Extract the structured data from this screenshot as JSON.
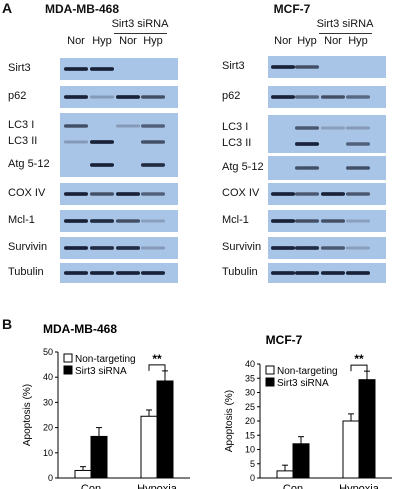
{
  "panel_a": {
    "letter": "A",
    "blots": [
      {
        "cell_line": "MDA-MB-468",
        "sirna_label": "Sirt3 siRNA",
        "lanes": [
          "Nor",
          "Hyp",
          "Nor",
          "Hyp"
        ],
        "rows": [
          {
            "label": "Sirt3",
            "bands": [
              1,
              1,
              0,
              0
            ]
          },
          {
            "label": "p62",
            "bands": [
              1,
              0.4,
              1,
              0.8
            ]
          },
          {
            "label": "LC3 I",
            "bands": [
              0.8,
              0,
              0.4,
              0.6
            ]
          },
          {
            "label": "LC3 II",
            "bands": [
              0.4,
              1,
              0,
              0.8
            ]
          },
          {
            "label": "Atg 5-12",
            "bands": [
              0,
              1,
              0,
              0.9
            ]
          },
          {
            "label": "COX IV",
            "bands": [
              1,
              0.8,
              1,
              0.6
            ]
          },
          {
            "label": "Mcl-1",
            "bands": [
              1,
              0.9,
              0.8,
              0.3
            ]
          },
          {
            "label": "Survivin",
            "bands": [
              1,
              0.9,
              0.9,
              0.4
            ]
          },
          {
            "label": "Tubulin",
            "bands": [
              1,
              1,
              1,
              1
            ]
          }
        ]
      },
      {
        "cell_line": "MCF-7",
        "sirna_label": "Sirt3 siRNA",
        "lanes": [
          "Nor",
          "Hyp",
          "Nor",
          "Hyp"
        ],
        "rows": [
          {
            "label": "Sirt3",
            "bands": [
              1,
              0.8,
              0,
              0
            ]
          },
          {
            "label": "p62",
            "bands": [
              1,
              0.5,
              0.8,
              0.5
            ]
          },
          {
            "label": "LC3 I",
            "bands": [
              0,
              0.7,
              0.3,
              0.4
            ]
          },
          {
            "label": "LC3 II",
            "bands": [
              0,
              1,
              0,
              0.6
            ]
          },
          {
            "label": "Atg 5-12",
            "bands": [
              0,
              0.8,
              0,
              0.8
            ]
          },
          {
            "label": "COX IV",
            "bands": [
              1,
              0.7,
              1,
              0.7
            ]
          },
          {
            "label": "Mcl-1",
            "bands": [
              1,
              0.8,
              0.8,
              0.3
            ]
          },
          {
            "label": "Survivin",
            "bands": [
              1,
              0.9,
              0.7,
              0.3
            ]
          },
          {
            "label": "Tubulin",
            "bands": [
              1,
              1,
              1,
              1
            ]
          }
        ]
      }
    ]
  },
  "panel_b": {
    "letter": "B"
  },
  "chart_data": [
    {
      "type": "bar",
      "title": "MDA-MB-468",
      "ylabel": "Apoptosis (%)",
      "xlabel": "",
      "categories": [
        "Con",
        "Hypoxia"
      ],
      "ylim": [
        0,
        50
      ],
      "yticks": [
        0,
        10,
        20,
        30,
        40,
        50
      ],
      "legend_position": "top-left",
      "series": [
        {
          "name": "Non-targeting",
          "values": [
            3,
            24.5
          ],
          "errors": [
            1.5,
            2.5
          ],
          "color": "#ffffff"
        },
        {
          "name": "Sirt3 siRNA",
          "values": [
            16.5,
            38.5
          ],
          "errors": [
            3.5,
            4
          ],
          "color": "#000000"
        }
      ],
      "annotation": "**"
    },
    {
      "type": "bar",
      "title": "MCF-7",
      "ylabel": "Apoptosis (%)",
      "xlabel": "",
      "categories": [
        "Con",
        "Hypoxia"
      ],
      "ylim": [
        0,
        40
      ],
      "yticks": [
        0,
        5,
        10,
        15,
        20,
        25,
        30,
        35,
        40
      ],
      "legend_position": "top-left",
      "series": [
        {
          "name": "Non-targeting",
          "values": [
            2.5,
            20
          ],
          "errors": [
            2,
            2.5
          ],
          "color": "#ffffff"
        },
        {
          "name": "Sirt3 siRNA",
          "values": [
            12,
            34.5
          ],
          "errors": [
            2.5,
            3
          ],
          "color": "#000000"
        }
      ],
      "annotation": "**"
    }
  ]
}
